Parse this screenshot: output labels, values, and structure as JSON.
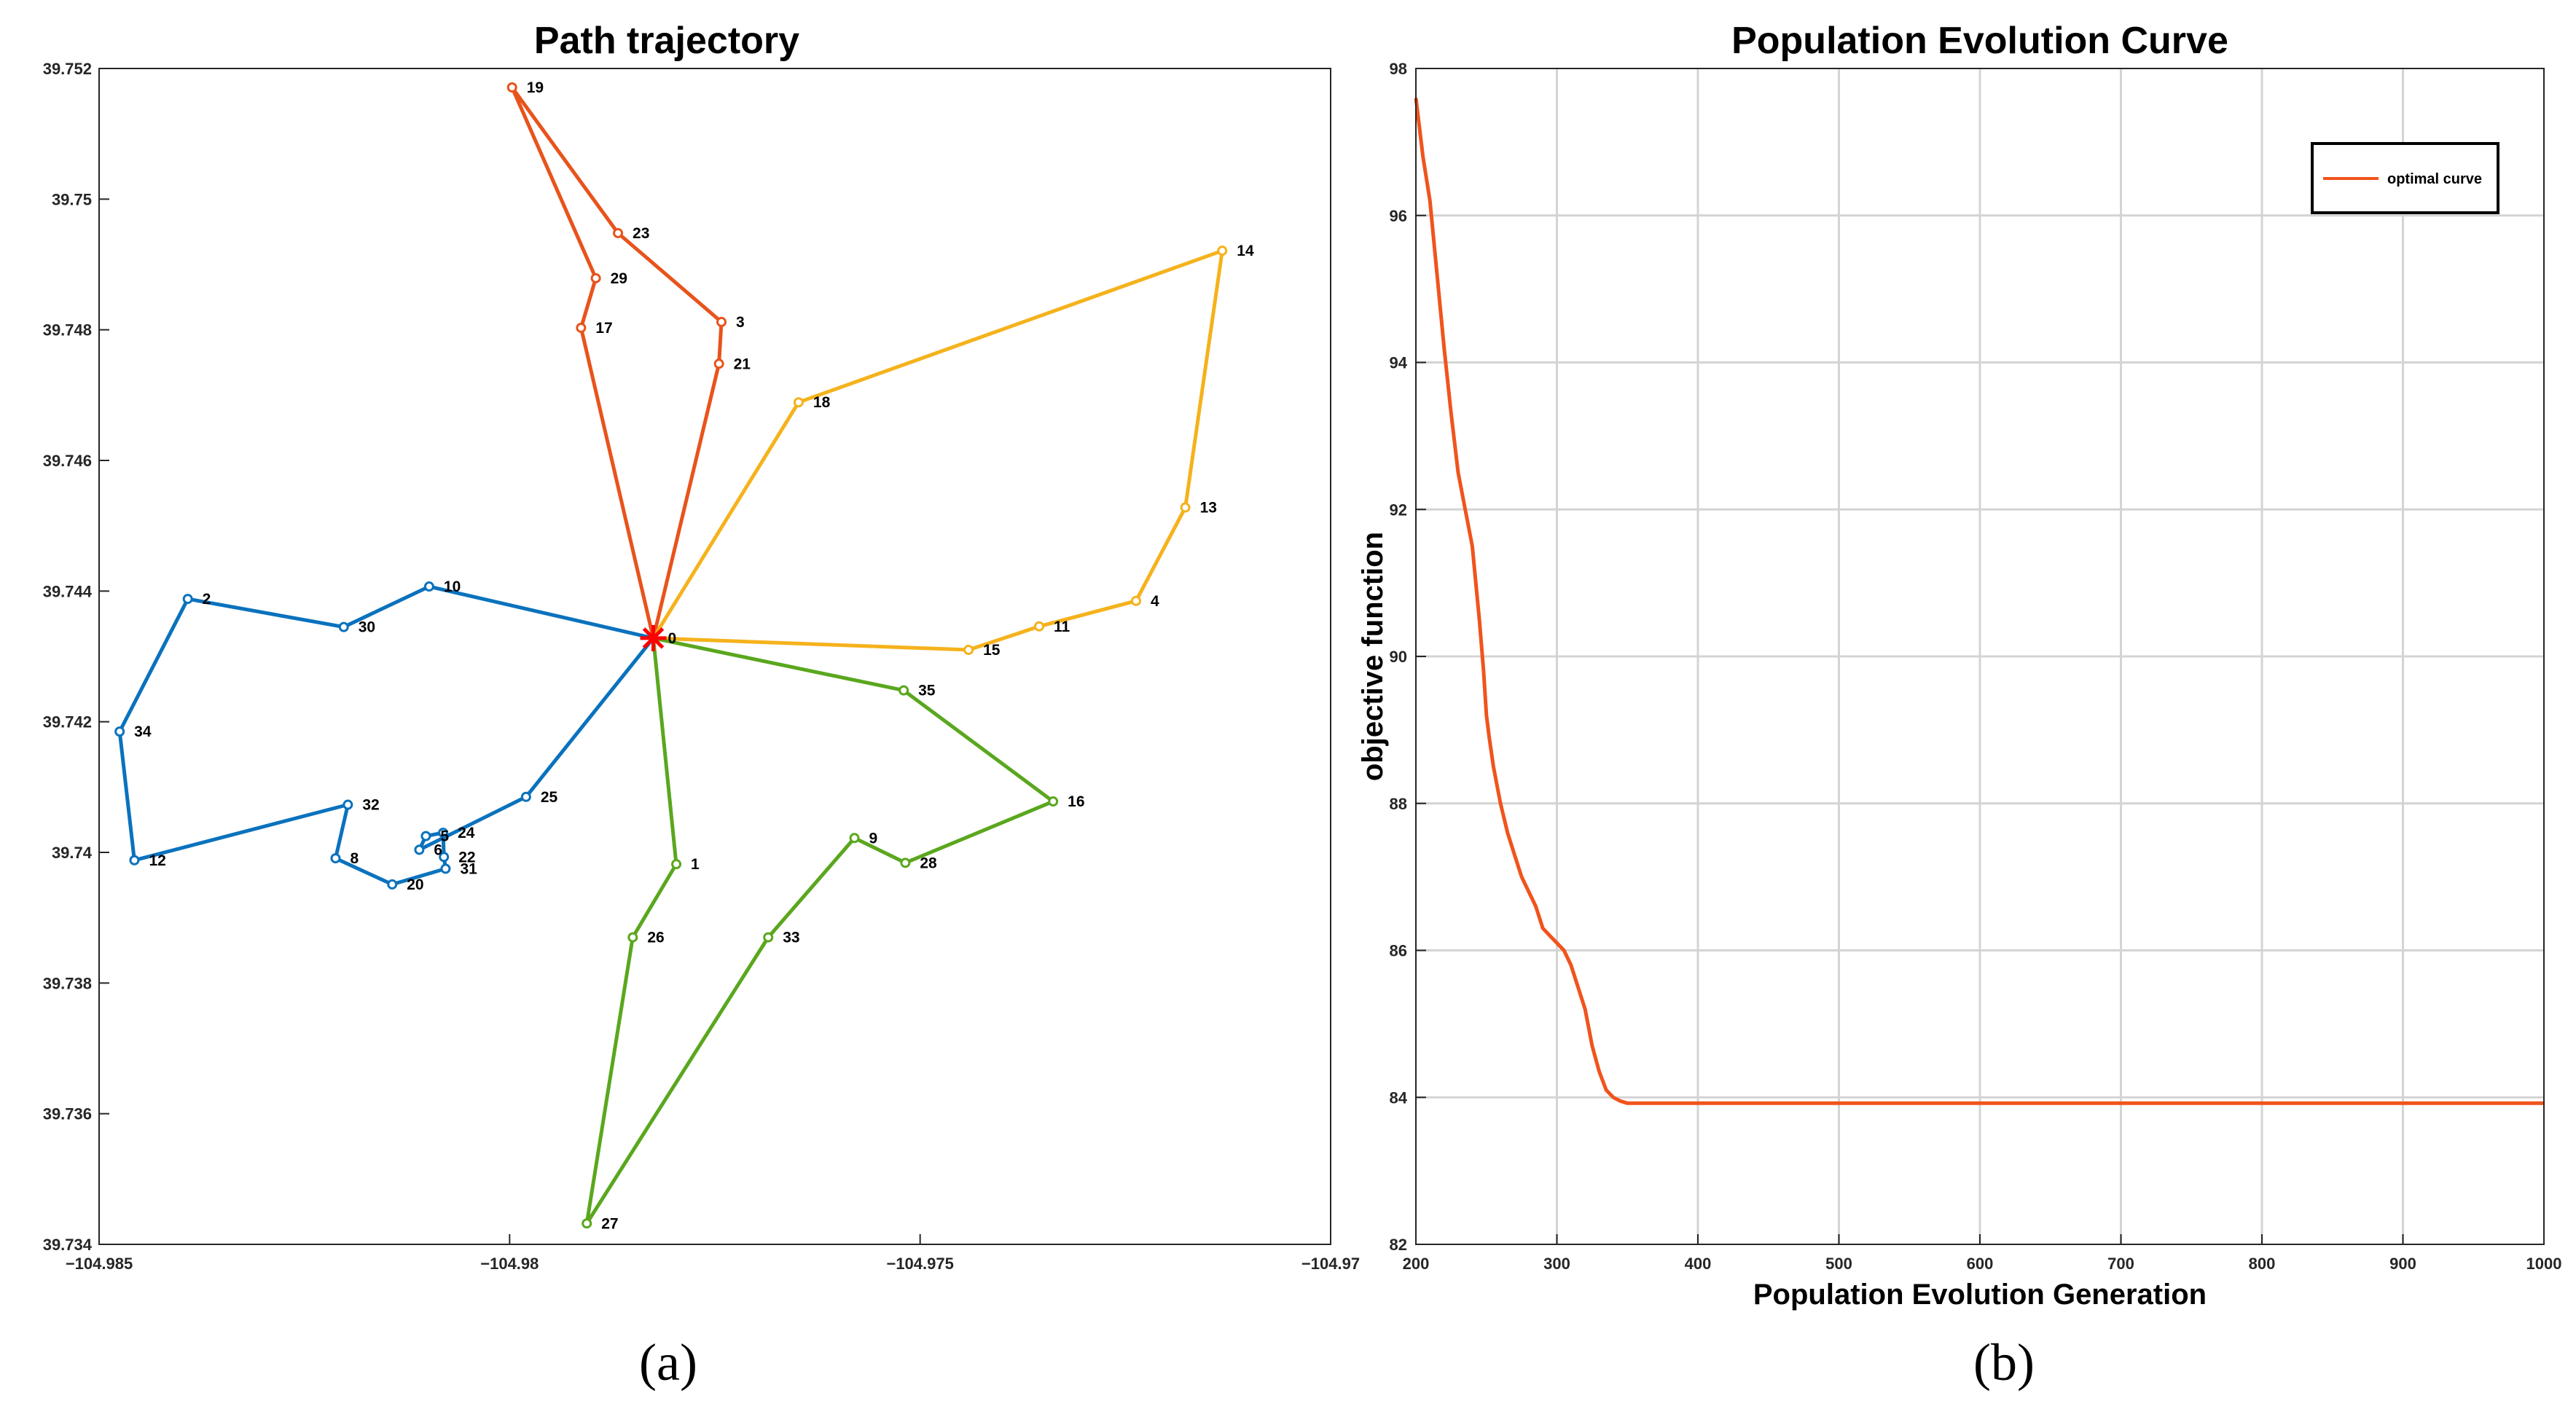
{
  "chart_data": [
    {
      "type": "line",
      "title": "Path trajectory",
      "panel_label": "(a)",
      "xlim": [
        -104.985,
        -104.97
      ],
      "ylim": [
        39.734,
        39.752
      ],
      "x_ticks": [
        {
          "value": -104.985,
          "label": "−104.985"
        },
        {
          "value": -104.98,
          "label": "−104.98"
        },
        {
          "value": -104.975,
          "label": "−104.975"
        },
        {
          "value": -104.97,
          "label": "−104.97"
        }
      ],
      "y_ticks": [
        {
          "value": 39.734,
          "label": "39.734"
        },
        {
          "value": 39.736,
          "label": "39.736"
        },
        {
          "value": 39.738,
          "label": "39.738"
        },
        {
          "value": 39.74,
          "label": "39.74"
        },
        {
          "value": 39.742,
          "label": "39.742"
        },
        {
          "value": 39.744,
          "label": "39.744"
        },
        {
          "value": 39.746,
          "label": "39.746"
        },
        {
          "value": 39.748,
          "label": "39.748"
        },
        {
          "value": 39.75,
          "label": "39.75"
        },
        {
          "value": 39.752,
          "label": "39.752"
        }
      ],
      "depot": {
        "label": "0",
        "x": -104.97825,
        "y": 39.74328,
        "color": "#ff0000"
      },
      "routes": [
        {
          "name": "route-orange-red",
          "color": "#e8531c",
          "points": [
            {
              "label": "0",
              "x": -104.97825,
              "y": 39.74328,
              "show": false
            },
            {
              "label": "21",
              "x": -104.97745,
              "y": 39.74748
            },
            {
              "label": "3",
              "x": -104.97742,
              "y": 39.74812
            },
            {
              "label": "23",
              "x": -104.97868,
              "y": 39.74948
            },
            {
              "label": "19",
              "x": -104.97997,
              "y": 39.75171
            },
            {
              "label": "29",
              "x": -104.97895,
              "y": 39.74879
            },
            {
              "label": "17",
              "x": -104.97913,
              "y": 39.74803
            },
            {
              "label": "0",
              "x": -104.97825,
              "y": 39.74328,
              "show": false
            }
          ]
        },
        {
          "name": "route-yellow",
          "color": "#f5b21c",
          "points": [
            {
              "label": "0",
              "x": -104.97825,
              "y": 39.74328,
              "show": false
            },
            {
              "label": "18",
              "x": -104.97648,
              "y": 39.74689
            },
            {
              "label": "14",
              "x": -104.97132,
              "y": 39.74921
            },
            {
              "label": "13",
              "x": -104.97177,
              "y": 39.74528
            },
            {
              "label": "4",
              "x": -104.97237,
              "y": 39.74385
            },
            {
              "label": "11",
              "x": -104.97355,
              "y": 39.74346
            },
            {
              "label": "15",
              "x": -104.97441,
              "y": 39.7431
            },
            {
              "label": "0",
              "x": -104.97825,
              "y": 39.74328,
              "show": false
            }
          ]
        },
        {
          "name": "route-green",
          "color": "#5aa71e",
          "points": [
            {
              "label": "0",
              "x": -104.97825,
              "y": 39.74328,
              "show": false
            },
            {
              "label": "35",
              "x": -104.9752,
              "y": 39.74248
            },
            {
              "label": "16",
              "x": -104.97338,
              "y": 39.74078
            },
            {
              "label": "28",
              "x": -104.97518,
              "y": 39.73984
            },
            {
              "label": "9",
              "x": -104.9758,
              "y": 39.74022
            },
            {
              "label": "33",
              "x": -104.97685,
              "y": 39.7387
            },
            {
              "label": "27",
              "x": -104.97906,
              "y": 39.73432
            },
            {
              "label": "26",
              "x": -104.9785,
              "y": 39.7387
            },
            {
              "label": "1",
              "x": -104.97797,
              "y": 39.73982
            },
            {
              "label": "0",
              "x": -104.97825,
              "y": 39.74328,
              "show": false
            }
          ]
        },
        {
          "name": "route-blue",
          "color": "#0a72bd",
          "points": [
            {
              "label": "0",
              "x": -104.97825,
              "y": 39.74328,
              "show": false
            },
            {
              "label": "10",
              "x": -104.98098,
              "y": 39.74407
            },
            {
              "label": "30",
              "x": -104.98202,
              "y": 39.74345
            },
            {
              "label": "2",
              "x": -104.98392,
              "y": 39.74388
            },
            {
              "label": "34",
              "x": -104.98475,
              "y": 39.74185
            },
            {
              "label": "12",
              "x": -104.98457,
              "y": 39.73988
            },
            {
              "label": "32",
              "x": -104.98197,
              "y": 39.74073
            },
            {
              "label": "8",
              "x": -104.98212,
              "y": 39.73991
            },
            {
              "label": "20",
              "x": -104.98143,
              "y": 39.73951
            },
            {
              "label": "31",
              "x": -104.98078,
              "y": 39.73975
            },
            {
              "label": "22",
              "x": -104.9808,
              "y": 39.73993
            },
            {
              "label": "24",
              "x": -104.98081,
              "y": 39.7403
            },
            {
              "label": "5",
              "x": -104.98102,
              "y": 39.74025
            },
            {
              "label": "6",
              "x": -104.9811,
              "y": 39.74004
            },
            {
              "label": "25",
              "x": -104.9798,
              "y": 39.74085
            },
            {
              "label": "0",
              "x": -104.97825,
              "y": 39.74328,
              "show": false
            }
          ]
        }
      ]
    },
    {
      "type": "line",
      "title": "Population Evolution Curve",
      "panel_label": "(b)",
      "xlabel": "Population Evolution Generation",
      "ylabel": "objective function",
      "xlim": [
        200,
        1000
      ],
      "ylim": [
        82,
        98
      ],
      "grid": true,
      "legend": "top-right",
      "x_ticks": [
        200,
        300,
        400,
        500,
        600,
        700,
        800,
        900,
        1000
      ],
      "y_ticks": [
        82,
        84,
        86,
        88,
        90,
        92,
        94,
        96,
        98
      ],
      "series": [
        {
          "name": "optimal curve",
          "color": "#f0541c",
          "x": [
            200,
            205,
            210,
            215,
            220,
            225,
            230,
            235,
            240,
            245,
            248,
            250,
            252,
            255,
            260,
            265,
            270,
            275,
            280,
            285,
            290,
            295,
            300,
            305,
            310,
            315,
            320,
            325,
            330,
            335,
            340,
            345,
            350,
            360,
            400,
            500,
            600,
            700,
            800,
            900,
            1000
          ],
          "y": [
            97.6,
            96.8,
            96.2,
            95.2,
            94.2,
            93.3,
            92.5,
            92.0,
            91.5,
            90.5,
            89.8,
            89.2,
            88.9,
            88.5,
            88.0,
            87.6,
            87.3,
            87.0,
            86.8,
            86.6,
            86.3,
            86.2,
            86.1,
            86.0,
            85.8,
            85.5,
            85.2,
            84.7,
            84.35,
            84.1,
            84.0,
            83.95,
            83.92,
            83.92,
            83.92,
            83.92,
            83.92,
            83.92,
            83.92,
            83.92,
            83.92
          ]
        }
      ]
    }
  ]
}
